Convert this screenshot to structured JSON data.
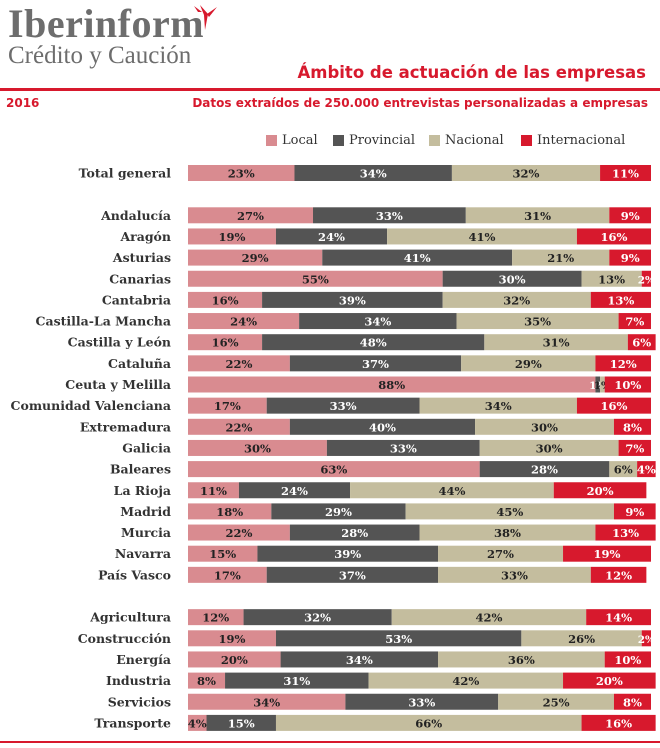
{
  "header": {
    "brand_name": "Iberinform",
    "brand_sub": "Crédito y Caución",
    "title": "Ámbito de actuación de las empresas",
    "year": "2016",
    "subtitle": "Datos extraídos de 250.000 entrevistas personalizadas a empresas"
  },
  "colors": {
    "accent": "#d7192d",
    "local": "#d98b90",
    "provincial": "#545454",
    "nacional": "#c4bd9e",
    "internacional": "#d7192d"
  },
  "chart_data": {
    "type": "bar",
    "orientation": "horizontal",
    "stacked": true,
    "unit": "%",
    "title": "Ámbito de actuación de las empresas",
    "legend": [
      "Local",
      "Provincial",
      "Nacional",
      "Internacional"
    ],
    "categories": [
      "Total general",
      "Andalucía",
      "Aragón",
      "Asturias",
      "Canarias",
      "Cantabria",
      "Castilla-La Mancha",
      "Castilla y León",
      "Cataluña",
      "Ceuta y Melilla",
      "Comunidad Valenciana",
      "Extremadura",
      "Galicia",
      "Baleares",
      "La Rioja",
      "Madrid",
      "Murcia",
      "Navarra",
      "País Vasco",
      "Agricultura",
      "Construcción",
      "Energía",
      "Industria",
      "Servicios",
      "Transporte"
    ],
    "groups": [
      {
        "name": "total",
        "categories": [
          "Total general"
        ]
      },
      {
        "name": "regiones",
        "categories": [
          "Andalucía",
          "Aragón",
          "Asturias",
          "Canarias",
          "Cantabria",
          "Castilla-La Mancha",
          "Castilla y León",
          "Cataluña",
          "Ceuta y Melilla",
          "Comunidad Valenciana",
          "Extremadura",
          "Galicia",
          "Baleares",
          "La Rioja",
          "Madrid",
          "Murcia",
          "Navarra",
          "País Vasco"
        ]
      },
      {
        "name": "sectores",
        "categories": [
          "Agricultura",
          "Construcción",
          "Energía",
          "Industria",
          "Servicios",
          "Transporte"
        ]
      }
    ],
    "series": [
      {
        "name": "Local",
        "values": [
          23,
          27,
          19,
          29,
          55,
          16,
          24,
          16,
          22,
          88,
          17,
          22,
          30,
          63,
          11,
          18,
          22,
          15,
          17,
          12,
          19,
          20,
          8,
          34,
          4
        ]
      },
      {
        "name": "Provincial",
        "values": [
          34,
          33,
          24,
          41,
          30,
          39,
          34,
          48,
          37,
          1,
          33,
          40,
          33,
          28,
          24,
          29,
          28,
          39,
          37,
          32,
          53,
          34,
          31,
          33,
          15
        ]
      },
      {
        "name": "Nacional",
        "values": [
          32,
          31,
          41,
          21,
          13,
          32,
          35,
          31,
          29,
          1,
          34,
          30,
          30,
          6,
          44,
          45,
          38,
          27,
          33,
          42,
          26,
          36,
          42,
          25,
          66
        ]
      },
      {
        "name": "Internacional",
        "values": [
          11,
          9,
          16,
          9,
          2,
          13,
          7,
          6,
          12,
          10,
          16,
          8,
          7,
          4,
          20,
          9,
          13,
          19,
          12,
          14,
          2,
          10,
          20,
          8,
          16
        ]
      }
    ],
    "xlim": [
      0,
      100
    ]
  }
}
